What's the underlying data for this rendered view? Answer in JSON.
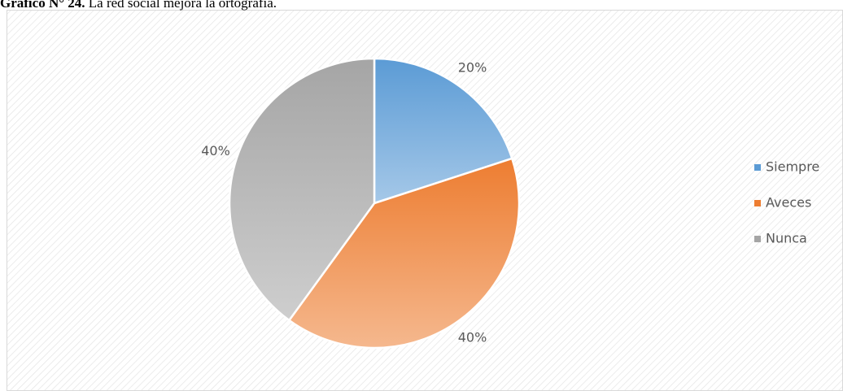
{
  "chart_data": {
    "type": "pie",
    "figure_label": "Gráfico N° 24.",
    "title": "La red social mejora la ortografía.",
    "categories": [
      "Siempre",
      "Aveces",
      "Nunca"
    ],
    "values": [
      20,
      40,
      40
    ],
    "value_labels": [
      "20%",
      "40%",
      "40%"
    ],
    "colors": [
      "#5b9bd5",
      "#ed7d31",
      "#a5a5a5"
    ],
    "legend": "right"
  }
}
